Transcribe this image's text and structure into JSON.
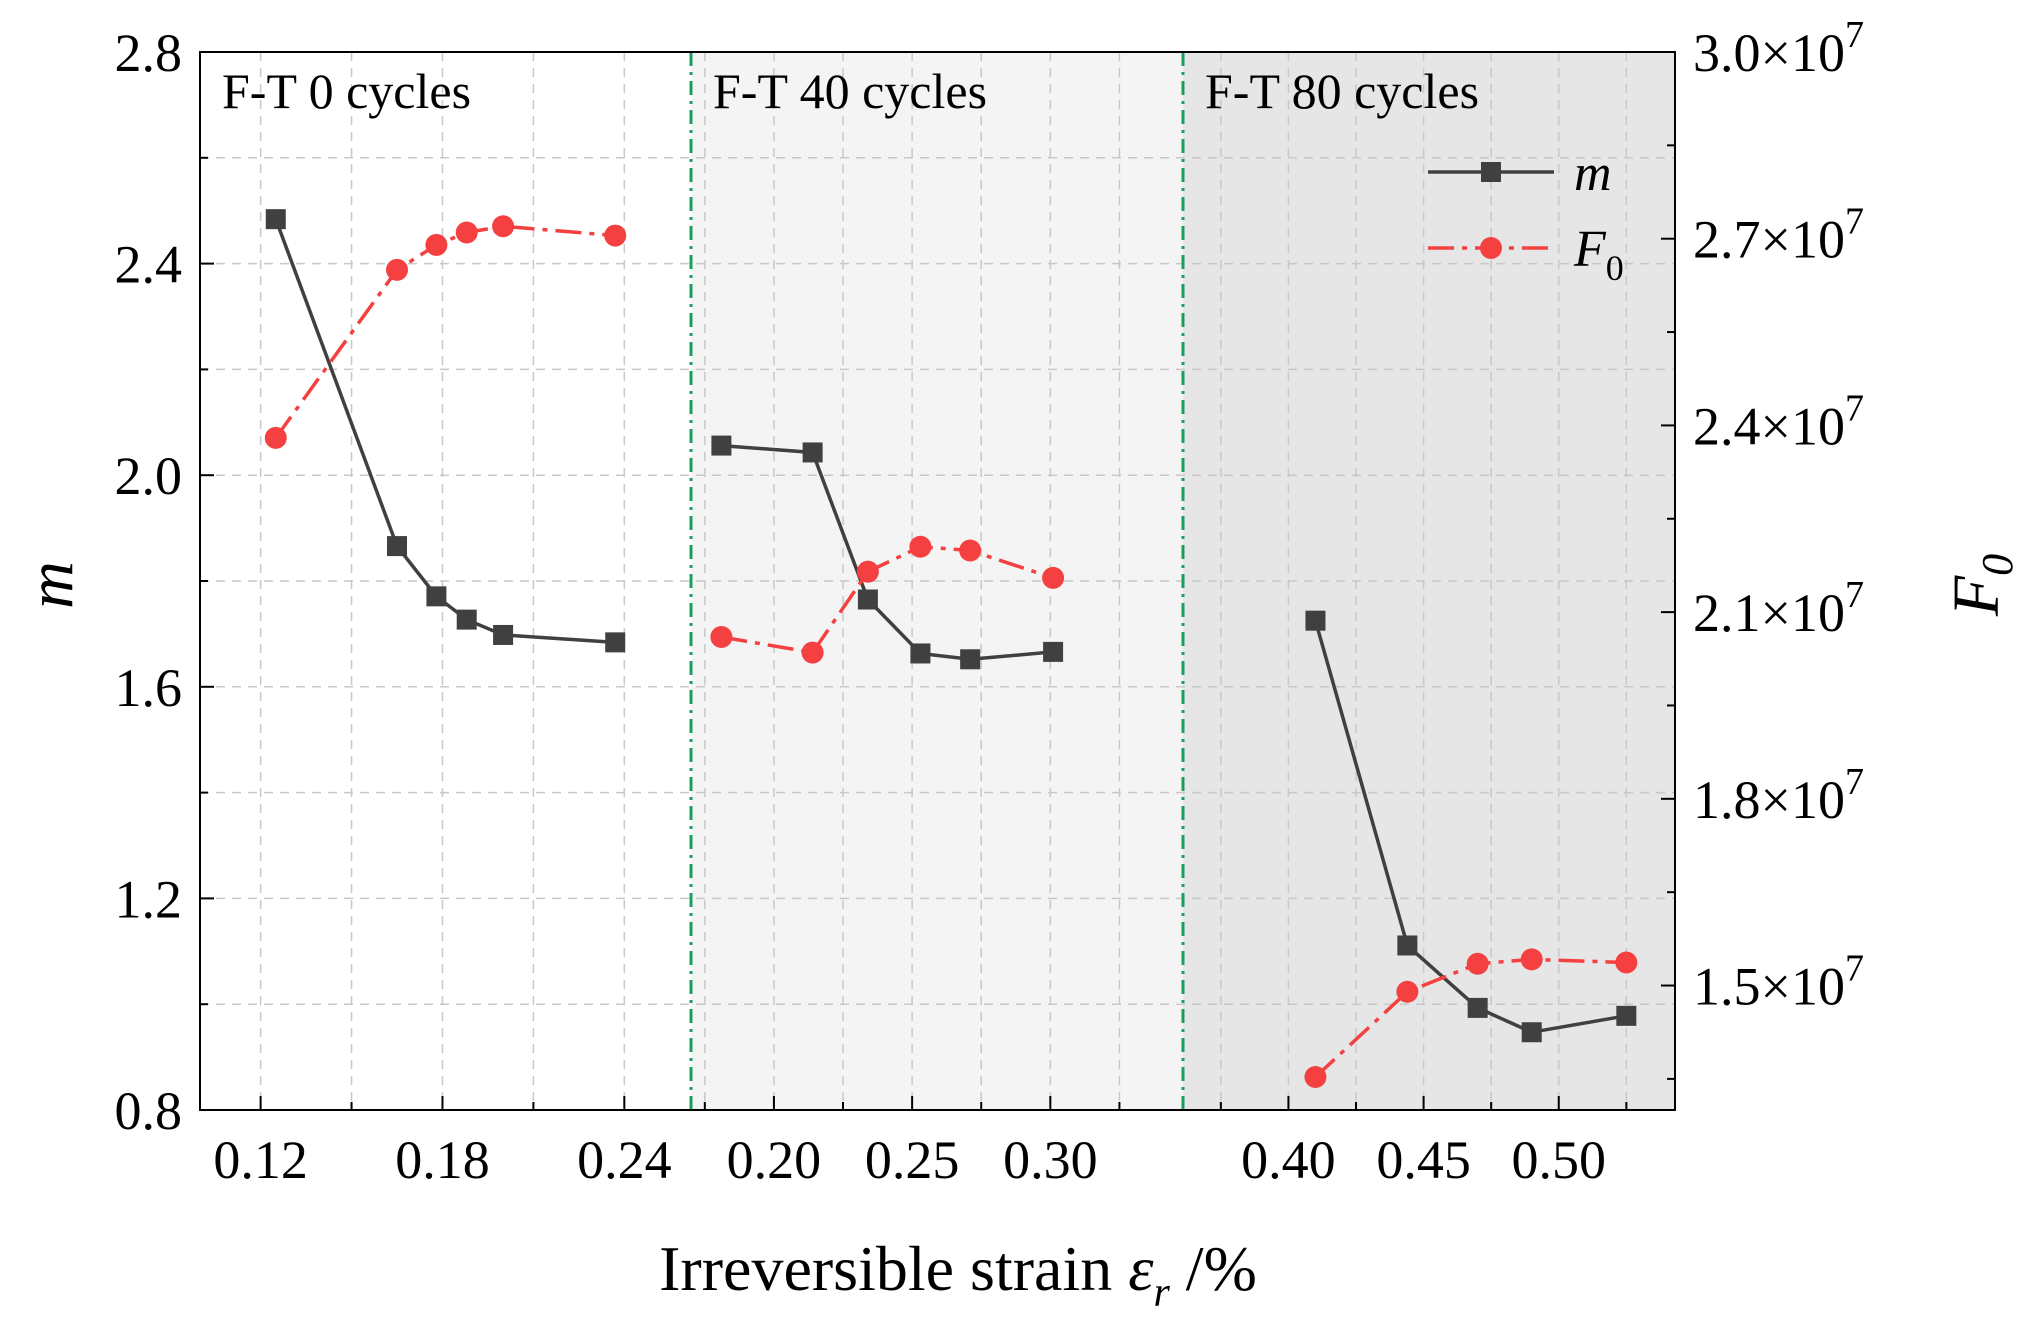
{
  "chart_data": {
    "type": "line",
    "xlabel": {
      "prefix": "Irreversible strain ",
      "symbol": "ε",
      "sub": "r",
      "suffix": " /%"
    },
    "ylabel_left": "m",
    "ylabel_right": "F",
    "ylabel_right_sub": "0",
    "y_left": {
      "range": [
        0.8,
        2.8
      ],
      "ticks": [
        0.8,
        1.2,
        1.6,
        2.0,
        2.4,
        2.8
      ],
      "tick_labels": [
        "0.8",
        "1.2",
        "1.6",
        "2.0",
        "2.4",
        "2.8"
      ]
    },
    "y_right": {
      "range": [
        13000000,
        30000000
      ],
      "ticks": [
        15000000,
        18000000,
        21000000,
        24000000,
        27000000,
        30000000
      ],
      "tick_labels": [
        "1.5×10",
        "1.8×10",
        "2.1×10",
        "2.4×10",
        "2.7×10",
        "3.0×10"
      ],
      "exponent": "7"
    },
    "legend": {
      "position": "top-right",
      "m_label": "m",
      "f_label": "F",
      "f_sub": "0"
    },
    "colors": {
      "m": "#404040",
      "f0": "#f44040",
      "divider": "#1a9e5c",
      "shade1": "#f4f4f4",
      "shade2": "#e6e6e6",
      "grid": "#c8c8c8"
    },
    "panels": [
      {
        "label": "F-T 0 cycles",
        "xrange": [
          0.1,
          0.262
        ],
        "ticks": [
          0.12,
          0.18,
          0.24
        ],
        "tick_labels": [
          "0.12",
          "0.18",
          "0.24"
        ],
        "m": {
          "x": [
            0.125,
            0.165,
            0.178,
            0.188,
            0.2,
            0.237
          ],
          "y": [
            2.484,
            1.866,
            1.771,
            1.727,
            1.698,
            1.684
          ]
        },
        "f0": {
          "x": [
            0.125,
            0.165,
            0.178,
            0.188,
            0.2,
            0.237
          ],
          "y": [
            23800000,
            26500000,
            26900000,
            27100000,
            27200000,
            27050000
          ]
        }
      },
      {
        "label": "F-T 40 cycles",
        "xrange": [
          0.17,
          0.348
        ],
        "ticks": [
          0.2,
          0.25,
          0.3
        ],
        "tick_labels": [
          "0.20",
          "0.25",
          "0.30"
        ],
        "m": {
          "x": [
            0.181,
            0.214,
            0.234,
            0.253,
            0.271,
            0.301
          ],
          "y": [
            2.056,
            2.043,
            1.765,
            1.663,
            1.652,
            1.666
          ]
        },
        "f0": {
          "x": [
            0.181,
            0.214,
            0.234,
            0.253,
            0.271,
            0.301
          ],
          "y": [
            20600000,
            20350000,
            21650000,
            22050000,
            21990000,
            21550000
          ]
        }
      },
      {
        "label": "F-T 80 cycles",
        "xrange": [
          0.361,
          0.543
        ],
        "ticks": [
          0.4,
          0.45,
          0.5
        ],
        "tick_labels": [
          "0.40",
          "0.45",
          "0.50"
        ],
        "m": {
          "x": [
            0.41,
            0.444,
            0.47,
            0.49,
            0.525
          ],
          "y": [
            1.725,
            1.111,
            0.993,
            0.947,
            0.978
          ]
        },
        "f0": {
          "x": [
            0.41,
            0.444,
            0.47,
            0.49,
            0.525
          ],
          "y": [
            13530000,
            14900000,
            15350000,
            15420000,
            15370000
          ]
        }
      }
    ]
  }
}
